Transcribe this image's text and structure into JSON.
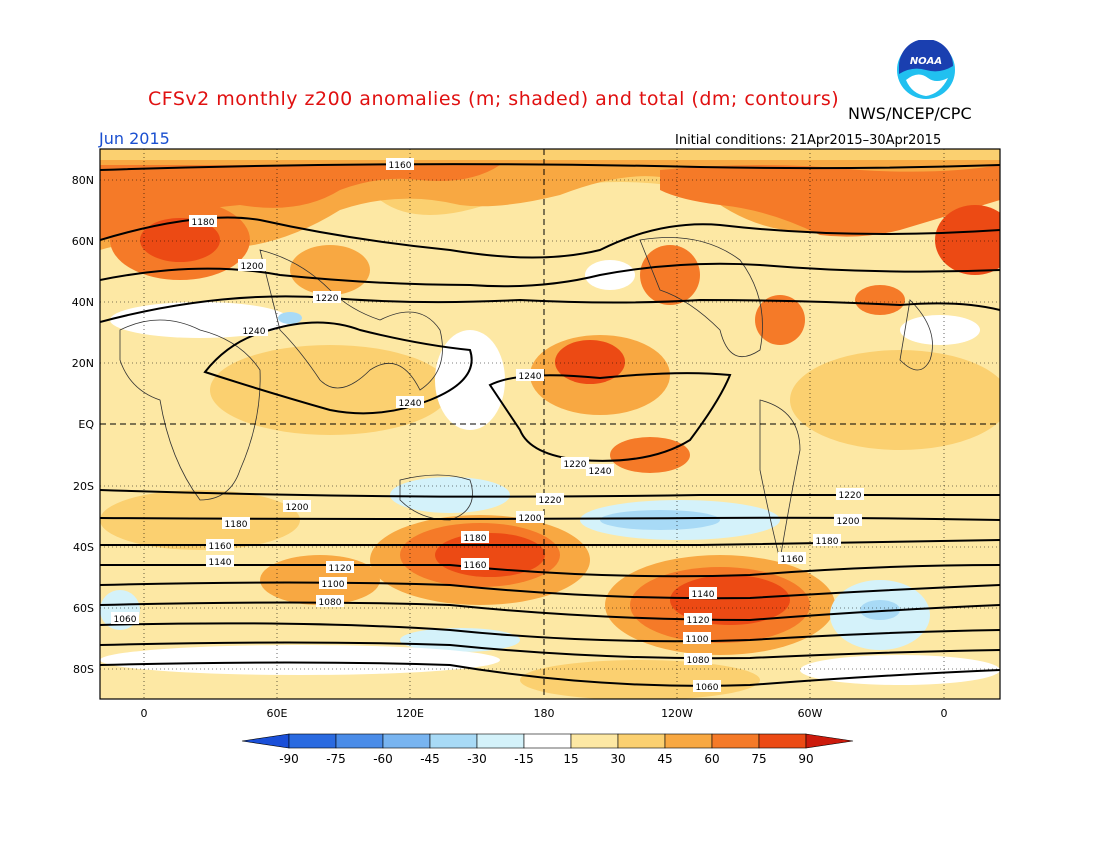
{
  "header": {
    "title": "CFSv2 monthly z200 anomalies (m; shaded) and total (dm; contours)",
    "agency": "NWS/NCEP/CPC",
    "month": "Jun 2015",
    "initial_conditions": "Initial conditions: 21Apr2015–30Apr2015",
    "logo_text": "NOAA"
  },
  "colors": {
    "title": "#e01010",
    "month": "#1a4fd0",
    "background_shade": "#fde8a4",
    "logo_blue": "#1a3fb0",
    "logo_cyan": "#21c0f0"
  },
  "map": {
    "lat_labels": [
      "80N",
      "60N",
      "40N",
      "20N",
      "EQ",
      "20S",
      "40S",
      "60S",
      "80S"
    ],
    "lon_labels": [
      "0",
      "60E",
      "120E",
      "180",
      "120W",
      "60W",
      "0"
    ],
    "contour_labels": [
      "1160",
      "1180",
      "1200",
      "1220",
      "1240",
      "1240",
      "1240",
      "1220",
      "1200",
      "1180",
      "1160",
      "1140",
      "1120",
      "1100",
      "1080",
      "1060",
      "1180",
      "1160",
      "1200",
      "1220",
      "1240",
      "1220",
      "1200",
      "1180",
      "1160",
      "1140",
      "1120",
      "1100",
      "1080",
      "1060"
    ],
    "contour_levels_dm": [
      1060,
      1080,
      1100,
      1120,
      1140,
      1160,
      1180,
      1200,
      1220,
      1240
    ]
  },
  "colorbar": {
    "labels": [
      "-90",
      "-75",
      "-60",
      "-45",
      "-30",
      "-15",
      "15",
      "30",
      "45",
      "60",
      "75",
      "90"
    ],
    "colors": [
      "#1a4fd8",
      "#2a6ae0",
      "#4a8ce8",
      "#78b4f0",
      "#a8daf6",
      "#d4f2fa",
      "#ffffff",
      "#fde8a4",
      "#fbd070",
      "#f8a842",
      "#f57a28",
      "#ec4a14",
      "#cc1a0c"
    ]
  }
}
